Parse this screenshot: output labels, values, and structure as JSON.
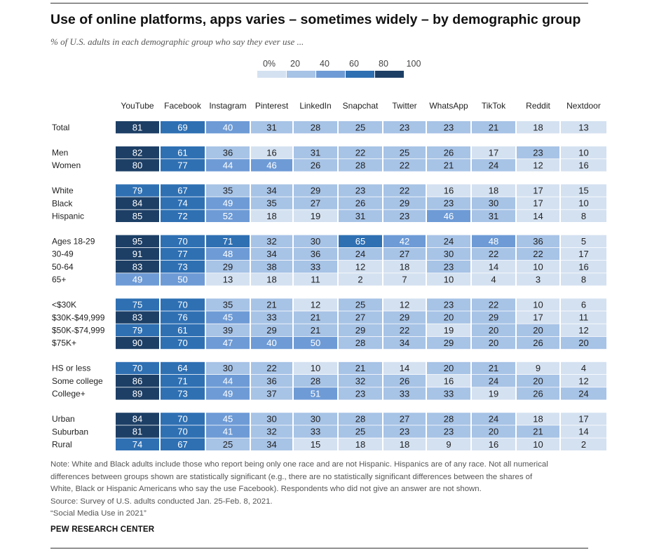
{
  "title": "Use of online platforms, apps varies – sometimes widely – by demographic group",
  "subtitle": "% of U.S. adults in each demographic group who say they ever use ...",
  "legend": {
    "labels": [
      "0%",
      "20",
      "40",
      "60",
      "80",
      "100"
    ],
    "colors": [
      "#d4e1f1",
      "#a7c3e6",
      "#6e9bd6",
      "#2f70b3",
      "#1d3f66"
    ]
  },
  "colors": {
    "text_light": "#ffffff",
    "text_dark": "#222222",
    "rule": "#333333",
    "note": "#555555"
  },
  "chart_data": {
    "type": "heatmap",
    "title": "Use of online platforms, apps varies – sometimes widely – by demographic group",
    "subtitle": "% of U.S. adults in each demographic group who say they ever use ...",
    "columns": [
      "YouTube",
      "Facebook",
      "Instagram",
      "Pinterest",
      "LinkedIn",
      "Snapchat",
      "Twitter",
      "WhatsApp",
      "TikTok",
      "Reddit",
      "Nextdoor"
    ],
    "color_scale": {
      "bins": [
        0,
        20,
        40,
        60,
        80,
        100
      ],
      "unit": "%"
    },
    "groups": [
      {
        "rows": [
          {
            "label": "Total",
            "values": [
              81,
              69,
              40,
              31,
              28,
              25,
              23,
              23,
              21,
              18,
              13
            ]
          }
        ]
      },
      {
        "rows": [
          {
            "label": "Men",
            "values": [
              82,
              61,
              36,
              16,
              31,
              22,
              25,
              26,
              17,
              23,
              10
            ]
          },
          {
            "label": "Women",
            "values": [
              80,
              77,
              44,
              46,
              26,
              28,
              22,
              21,
              24,
              12,
              16
            ]
          }
        ]
      },
      {
        "rows": [
          {
            "label": "White",
            "values": [
              79,
              67,
              35,
              34,
              29,
              23,
              22,
              16,
              18,
              17,
              15
            ]
          },
          {
            "label": "Black",
            "values": [
              84,
              74,
              49,
              35,
              27,
              26,
              29,
              23,
              30,
              17,
              10
            ]
          },
          {
            "label": "Hispanic",
            "values": [
              85,
              72,
              52,
              18,
              19,
              31,
              23,
              46,
              31,
              14,
              8
            ]
          }
        ]
      },
      {
        "rows": [
          {
            "label": "Ages 18-29",
            "values": [
              95,
              70,
              71,
              32,
              30,
              65,
              42,
              24,
              48,
              36,
              5
            ]
          },
          {
            "label": "30-49",
            "values": [
              91,
              77,
              48,
              34,
              36,
              24,
              27,
              30,
              22,
              22,
              17
            ]
          },
          {
            "label": "50-64",
            "values": [
              83,
              73,
              29,
              38,
              33,
              12,
              18,
              23,
              14,
              10,
              16
            ]
          },
          {
            "label": "65+",
            "values": [
              49,
              50,
              13,
              18,
              11,
              2,
              7,
              10,
              4,
              3,
              8
            ]
          }
        ]
      },
      {
        "rows": [
          {
            "label": "<$30K",
            "values": [
              75,
              70,
              35,
              21,
              12,
              25,
              12,
              23,
              22,
              10,
              6
            ]
          },
          {
            "label": "$30K-$49,999",
            "values": [
              83,
              76,
              45,
              33,
              21,
              27,
              29,
              20,
              29,
              17,
              11
            ]
          },
          {
            "label": "$50K-$74,999",
            "values": [
              79,
              61,
              39,
              29,
              21,
              29,
              22,
              19,
              20,
              20,
              12
            ]
          },
          {
            "label": "$75K+",
            "values": [
              90,
              70,
              47,
              40,
              50,
              28,
              34,
              29,
              20,
              26,
              20
            ]
          }
        ]
      },
      {
        "rows": [
          {
            "label": "HS or less",
            "values": [
              70,
              64,
              30,
              22,
              10,
              21,
              14,
              20,
              21,
              9,
              4
            ]
          },
          {
            "label": "Some college",
            "values": [
              86,
              71,
              44,
              36,
              28,
              32,
              26,
              16,
              24,
              20,
              12
            ]
          },
          {
            "label": "College+",
            "values": [
              89,
              73,
              49,
              37,
              51,
              23,
              33,
              33,
              19,
              26,
              24
            ]
          }
        ]
      },
      {
        "rows": [
          {
            "label": "Urban",
            "values": [
              84,
              70,
              45,
              30,
              30,
              28,
              27,
              28,
              24,
              18,
              17
            ]
          },
          {
            "label": "Suburban",
            "values": [
              81,
              70,
              41,
              32,
              33,
              25,
              23,
              23,
              20,
              21,
              14
            ]
          },
          {
            "label": "Rural",
            "values": [
              74,
              67,
              25,
              34,
              15,
              18,
              18,
              9,
              16,
              10,
              2
            ]
          }
        ]
      }
    ]
  },
  "notes": {
    "lines": [
      "Note: White and Black adults include those who report being only one race and are not Hispanic. Hispanics are of any race. Not all numerical",
      "differences between groups shown are statistically significant (e.g., there are no statistically significant differences between the shares of",
      "White, Black or Hispanic Americans who say the use Facebook). Respondents who did not give an answer are not shown.",
      "Source: Survey of U.S. adults conducted Jan. 25-Feb. 8, 2021.",
      "“Social Media Use in 2021”"
    ]
  },
  "brand": "PEW RESEARCH CENTER"
}
